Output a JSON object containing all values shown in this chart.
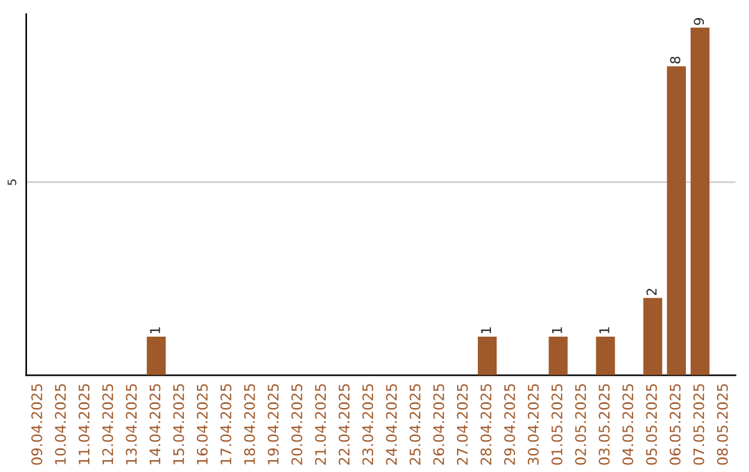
{
  "chart_data": {
    "type": "bar",
    "categories": [
      "09.04.2025",
      "10.04.2025",
      "11.04.2025",
      "12.04.2025",
      "13.04.2025",
      "14.04.2025",
      "15.04.2025",
      "16.04.2025",
      "17.04.2025",
      "18.04.2025",
      "19.04.2025",
      "20.04.2025",
      "21.04.2025",
      "22.04.2025",
      "23.04.2025",
      "24.04.2025",
      "25.04.2025",
      "26.04.2025",
      "27.04.2025",
      "28.04.2025",
      "29.04.2025",
      "30.04.2025",
      "01.05.2025",
      "02.05.2025",
      "03.05.2025",
      "04.05.2025",
      "05.05.2025",
      "06.05.2025",
      "07.05.2025",
      "08.05.2025"
    ],
    "values": [
      0,
      0,
      0,
      0,
      0,
      1,
      0,
      0,
      0,
      0,
      0,
      0,
      0,
      0,
      0,
      0,
      0,
      0,
      0,
      1,
      0,
      0,
      1,
      0,
      1,
      0,
      2,
      8,
      9,
      0
    ],
    "value_labels": [
      null,
      null,
      null,
      null,
      null,
      "1",
      null,
      null,
      null,
      null,
      null,
      null,
      null,
      null,
      null,
      null,
      null,
      null,
      null,
      "1",
      null,
      null,
      "1",
      null,
      "1",
      null,
      "2",
      "8",
      "9",
      null
    ],
    "color": "#a0592a",
    "ylim": [
      0,
      9.35
    ],
    "yticks": [
      5
    ],
    "grid": "y",
    "legend": false
  }
}
